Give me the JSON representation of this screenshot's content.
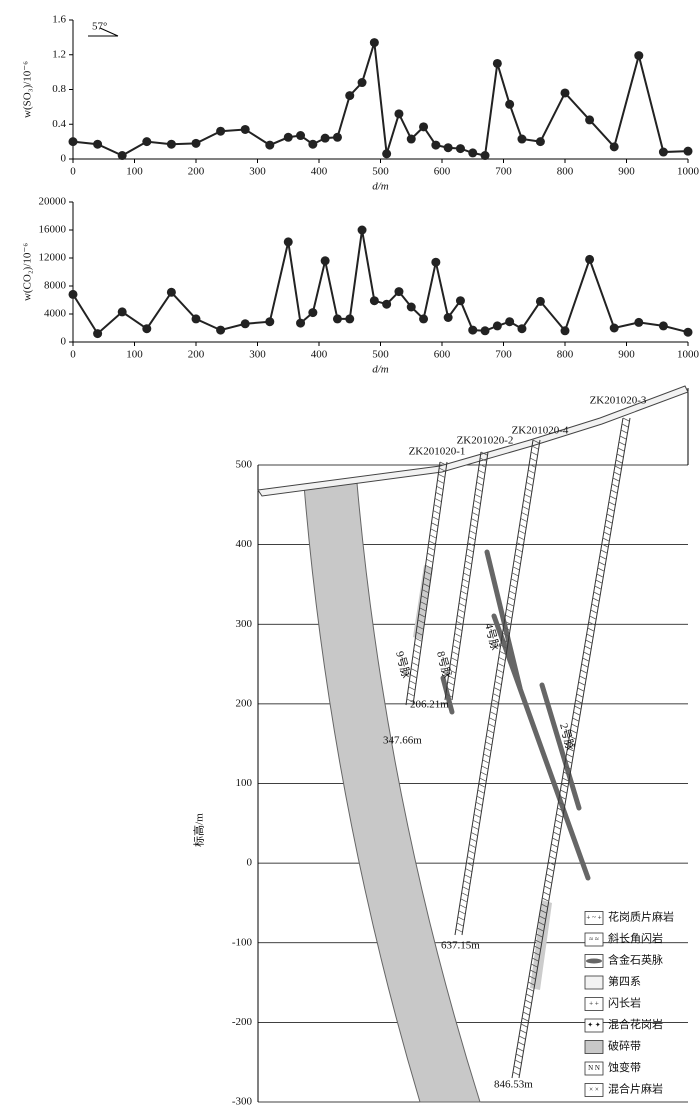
{
  "chart_data": [
    {
      "type": "line",
      "ylabel": "w(SO₃)/10⁻⁶",
      "xlabel": "d/m",
      "annotation": "57°",
      "color": "#222222",
      "x": [
        0,
        40,
        80,
        120,
        160,
        200,
        240,
        280,
        320,
        350,
        370,
        390,
        410,
        430,
        450,
        470,
        490,
        510,
        530,
        550,
        570,
        590,
        610,
        630,
        650,
        670,
        690,
        710,
        730,
        760,
        800,
        840,
        880,
        920,
        960,
        1000
      ],
      "values": [
        0.2,
        0.17,
        0.04,
        0.2,
        0.17,
        0.18,
        0.32,
        0.34,
        0.16,
        0.25,
        0.27,
        0.17,
        0.24,
        0.25,
        0.73,
        0.88,
        1.34,
        0.06,
        0.52,
        0.23,
        0.37,
        0.16,
        0.13,
        0.12,
        0.07,
        0.04,
        1.1,
        0.63,
        0.23,
        0.2,
        0.76,
        0.45,
        0.14,
        1.19,
        0.08,
        0.09
      ],
      "xlim": [
        0,
        1000
      ],
      "xticks": [
        0,
        100,
        200,
        300,
        400,
        500,
        600,
        700,
        800,
        900,
        1000
      ],
      "ylim": [
        0,
        1.6
      ],
      "yticks": [
        0,
        0.4,
        0.8,
        1.2,
        1.6
      ]
    },
    {
      "type": "line",
      "ylabel": "w(CO₂)/10⁻⁶",
      "xlabel": "d/m",
      "color": "#222222",
      "x": [
        0,
        40,
        80,
        120,
        160,
        200,
        240,
        280,
        320,
        350,
        370,
        390,
        410,
        430,
        450,
        470,
        490,
        510,
        530,
        550,
        570,
        590,
        610,
        630,
        650,
        670,
        690,
        710,
        730,
        760,
        800,
        840,
        880,
        920,
        960,
        1000
      ],
      "values": [
        6800,
        1200,
        4300,
        1900,
        7100,
        3300,
        1700,
        2600,
        2900,
        14300,
        2700,
        4200,
        11600,
        3300,
        3300,
        16000,
        5900,
        5400,
        7200,
        5000,
        3300,
        11400,
        3500,
        5900,
        1700,
        1600,
        2300,
        2900,
        1900,
        5800,
        1600,
        11800,
        2000,
        2800,
        2300,
        1400
      ],
      "xlim": [
        0,
        1000
      ],
      "xticks": [
        0,
        100,
        200,
        300,
        400,
        500,
        600,
        700,
        800,
        900,
        1000
      ],
      "ylim": [
        0,
        20000
      ],
      "yticks": [
        0,
        4000,
        8000,
        12000,
        16000,
        20000
      ]
    },
    {
      "type": "section",
      "ylabel": "标高/m",
      "ylim": [
        -300,
        500
      ],
      "yticks": [
        500,
        400,
        300,
        200,
        100,
        0,
        -100,
        -200,
        -300
      ],
      "drill_holes": [
        "ZK201020-1",
        "ZK201020-2",
        "ZK201020-4",
        "ZK201020-3"
      ],
      "depth_labels": [
        "206.21m",
        "347.66m",
        "637.15m",
        "846.53m"
      ],
      "vein_labels": [
        "9号脉",
        "8号脉",
        "4号脉",
        "2号脉"
      ],
      "legend": [
        "花岗质片麻岩",
        "斜长角闪岩",
        "含金石英脉",
        "第四系",
        "闪长岩",
        "混合花岗岩",
        "破碎带",
        "蚀变带",
        "混合片麻岩"
      ]
    }
  ]
}
